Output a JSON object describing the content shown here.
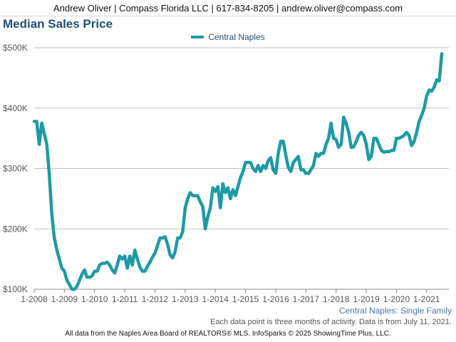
{
  "header": {
    "contact": "Andrew Oliver | Compass Florida LLC | 617-834-8205 | andrew.oliver@compass.com"
  },
  "footer": {
    "region": "Central Naples: Single Family",
    "note": "Each data point is three months of activity. Data is from July 11, 2021.",
    "copyright": "All data from the Naples Area Board of REALTORS® MLS. InfoSparks © 2025 ShowingTime Plus, LLC."
  },
  "colors": {
    "series": "#1e9aa5",
    "title": "#1f4e79",
    "grid": "#bfbfbf"
  },
  "chart_data": {
    "type": "line",
    "title": "Median Sales Price",
    "xlabel": "",
    "ylabel": "",
    "legend_position": "top-center",
    "grid": true,
    "ylim": [
      100000,
      500000
    ],
    "yticks": [
      {
        "value": 100000,
        "label": "$100K"
      },
      {
        "value": 200000,
        "label": "$200K"
      },
      {
        "value": 300000,
        "label": "$300K"
      },
      {
        "value": 400000,
        "label": "$400K"
      },
      {
        "value": 500000,
        "label": "$500K"
      }
    ],
    "xlim": [
      "2008-01",
      "2021-07"
    ],
    "xticks": [
      "1-2008",
      "1-2009",
      "1-2010",
      "1-2011",
      "1-2012",
      "1-2013",
      "1-2014",
      "1-2015",
      "1-2016",
      "1-2017",
      "1-2018",
      "1-2019",
      "1-2020",
      "1-2021"
    ],
    "series": [
      {
        "name": "Central Naples",
        "points": [
          [
            "2008-01",
            378000
          ],
          [
            "2008-02",
            378000
          ],
          [
            "2008-03",
            340000
          ],
          [
            "2008-04",
            375000
          ],
          [
            "2008-05",
            358000
          ],
          [
            "2008-06",
            340000
          ],
          [
            "2008-07",
            290000
          ],
          [
            "2008-08",
            225000
          ],
          [
            "2008-09",
            185000
          ],
          [
            "2008-10",
            165000
          ],
          [
            "2008-11",
            150000
          ],
          [
            "2008-12",
            135000
          ],
          [
            "2009-01",
            130000
          ],
          [
            "2009-02",
            115000
          ],
          [
            "2009-03",
            108000
          ],
          [
            "2009-04",
            100000
          ],
          [
            "2009-05",
            100000
          ],
          [
            "2009-06",
            105000
          ],
          [
            "2009-07",
            115000
          ],
          [
            "2009-08",
            125000
          ],
          [
            "2009-09",
            132000
          ],
          [
            "2009-10",
            120000
          ],
          [
            "2009-11",
            120000
          ],
          [
            "2009-12",
            122000
          ],
          [
            "2010-01",
            130000
          ],
          [
            "2010-02",
            130000
          ],
          [
            "2010-03",
            140000
          ],
          [
            "2010-04",
            143000
          ],
          [
            "2010-05",
            143000
          ],
          [
            "2010-06",
            145000
          ],
          [
            "2010-07",
            140000
          ],
          [
            "2010-08",
            132000
          ],
          [
            "2010-09",
            127000
          ],
          [
            "2010-10",
            140000
          ],
          [
            "2010-11",
            155000
          ],
          [
            "2010-12",
            150000
          ],
          [
            "2011-01",
            155000
          ],
          [
            "2011-02",
            135000
          ],
          [
            "2011-03",
            155000
          ],
          [
            "2011-04",
            140000
          ],
          [
            "2011-05",
            165000
          ],
          [
            "2011-06",
            150000
          ],
          [
            "2011-07",
            137000
          ],
          [
            "2011-08",
            130000
          ],
          [
            "2011-09",
            130000
          ],
          [
            "2011-10",
            138000
          ],
          [
            "2011-11",
            145000
          ],
          [
            "2011-12",
            153000
          ],
          [
            "2012-01",
            160000
          ],
          [
            "2012-02",
            172000
          ],
          [
            "2012-03",
            185000
          ],
          [
            "2012-04",
            185000
          ],
          [
            "2012-05",
            187000
          ],
          [
            "2012-06",
            175000
          ],
          [
            "2012-07",
            157000
          ],
          [
            "2012-08",
            152000
          ],
          [
            "2012-09",
            162000
          ],
          [
            "2012-10",
            185000
          ],
          [
            "2012-11",
            185000
          ],
          [
            "2012-12",
            195000
          ],
          [
            "2013-01",
            235000
          ],
          [
            "2013-02",
            250000
          ],
          [
            "2013-03",
            260000
          ],
          [
            "2013-04",
            255000
          ],
          [
            "2013-05",
            255000
          ],
          [
            "2013-06",
            255000
          ],
          [
            "2013-07",
            245000
          ],
          [
            "2013-08",
            237000
          ],
          [
            "2013-09",
            200000
          ],
          [
            "2013-10",
            220000
          ],
          [
            "2013-11",
            235000
          ],
          [
            "2013-12",
            268000
          ],
          [
            "2014-01",
            262000
          ],
          [
            "2014-02",
            270000
          ],
          [
            "2014-03",
            235000
          ],
          [
            "2014-04",
            275000
          ],
          [
            "2014-05",
            260000
          ],
          [
            "2014-06",
            268000
          ],
          [
            "2014-07",
            250000
          ],
          [
            "2014-08",
            265000
          ],
          [
            "2014-09",
            255000
          ],
          [
            "2014-10",
            270000
          ],
          [
            "2014-11",
            285000
          ],
          [
            "2014-12",
            295000
          ],
          [
            "2015-01",
            310000
          ],
          [
            "2015-02",
            310000
          ],
          [
            "2015-03",
            310000
          ],
          [
            "2015-04",
            300000
          ],
          [
            "2015-05",
            295000
          ],
          [
            "2015-06",
            305000
          ],
          [
            "2015-07",
            295000
          ],
          [
            "2015-08",
            305000
          ],
          [
            "2015-09",
            300000
          ],
          [
            "2015-10",
            313000
          ],
          [
            "2015-11",
            318000
          ],
          [
            "2015-12",
            298000
          ],
          [
            "2016-01",
            292000
          ],
          [
            "2016-02",
            325000
          ],
          [
            "2016-03",
            345000
          ],
          [
            "2016-04",
            345000
          ],
          [
            "2016-05",
            322000
          ],
          [
            "2016-06",
            302000
          ],
          [
            "2016-07",
            295000
          ],
          [
            "2016-08",
            310000
          ],
          [
            "2016-09",
            315000
          ],
          [
            "2016-10",
            320000
          ],
          [
            "2016-11",
            298000
          ],
          [
            "2016-12",
            298000
          ],
          [
            "2017-01",
            292000
          ],
          [
            "2017-02",
            292000
          ],
          [
            "2017-03",
            298000
          ],
          [
            "2017-04",
            305000
          ],
          [
            "2017-05",
            325000
          ],
          [
            "2017-06",
            320000
          ],
          [
            "2017-07",
            325000
          ],
          [
            "2017-08",
            325000
          ],
          [
            "2017-09",
            340000
          ],
          [
            "2017-10",
            350000
          ],
          [
            "2017-11",
            375000
          ],
          [
            "2017-12",
            350000
          ],
          [
            "2018-01",
            348000
          ],
          [
            "2018-02",
            335000
          ],
          [
            "2018-03",
            340000
          ],
          [
            "2018-04",
            385000
          ],
          [
            "2018-05",
            375000
          ],
          [
            "2018-06",
            360000
          ],
          [
            "2018-07",
            335000
          ],
          [
            "2018-08",
            336000
          ],
          [
            "2018-09",
            345000
          ],
          [
            "2018-10",
            355000
          ],
          [
            "2018-11",
            360000
          ],
          [
            "2018-12",
            355000
          ],
          [
            "2019-01",
            340000
          ],
          [
            "2019-02",
            315000
          ],
          [
            "2019-03",
            320000
          ],
          [
            "2019-04",
            350000
          ],
          [
            "2019-05",
            350000
          ],
          [
            "2019-06",
            340000
          ],
          [
            "2019-07",
            330000
          ],
          [
            "2019-08",
            327000
          ],
          [
            "2019-09",
            328000
          ],
          [
            "2019-10",
            328000
          ],
          [
            "2019-11",
            330000
          ],
          [
            "2019-12",
            330000
          ],
          [
            "2020-01",
            350000
          ],
          [
            "2020-02",
            350000
          ],
          [
            "2020-03",
            352000
          ],
          [
            "2020-04",
            355000
          ],
          [
            "2020-05",
            360000
          ],
          [
            "2020-06",
            355000
          ],
          [
            "2020-07",
            338000
          ],
          [
            "2020-08",
            345000
          ],
          [
            "2020-09",
            360000
          ],
          [
            "2020-10",
            378000
          ],
          [
            "2020-11",
            388000
          ],
          [
            "2020-12",
            400000
          ],
          [
            "2021-01",
            420000
          ],
          [
            "2021-02",
            430000
          ],
          [
            "2021-03",
            428000
          ],
          [
            "2021-04",
            435000
          ],
          [
            "2021-05",
            447000
          ],
          [
            "2021-06",
            445000
          ],
          [
            "2021-07",
            490000
          ]
        ]
      }
    ]
  }
}
